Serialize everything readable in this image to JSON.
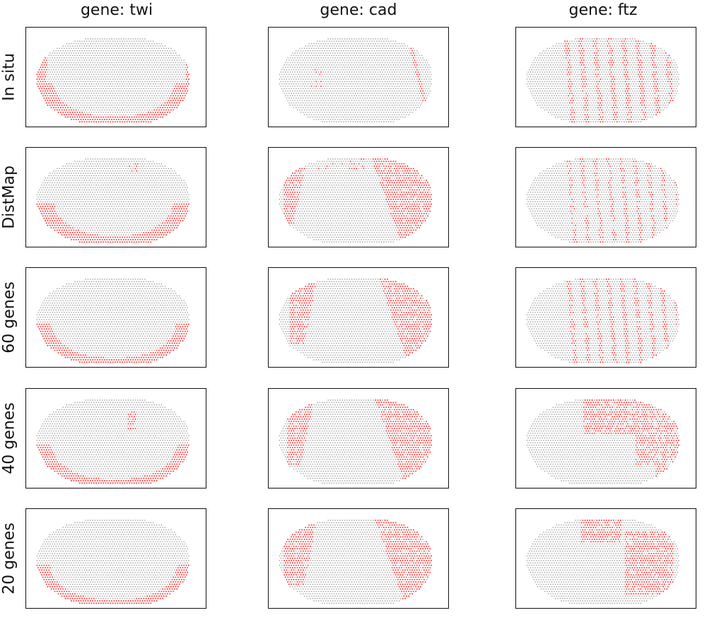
{
  "colors": {
    "expressed": "#ff2020",
    "not_expressed": "#9a9a9a",
    "frame": "#111111"
  },
  "columns": [
    {
      "title": "gene: twi"
    },
    {
      "title": "gene: cad"
    },
    {
      "title": "gene: ftz"
    }
  ],
  "rows": [
    {
      "label": "In situ"
    },
    {
      "label": "DistMap"
    },
    {
      "label": "60 genes"
    },
    {
      "label": "40 genes"
    },
    {
      "label": "20 genes"
    }
  ]
}
